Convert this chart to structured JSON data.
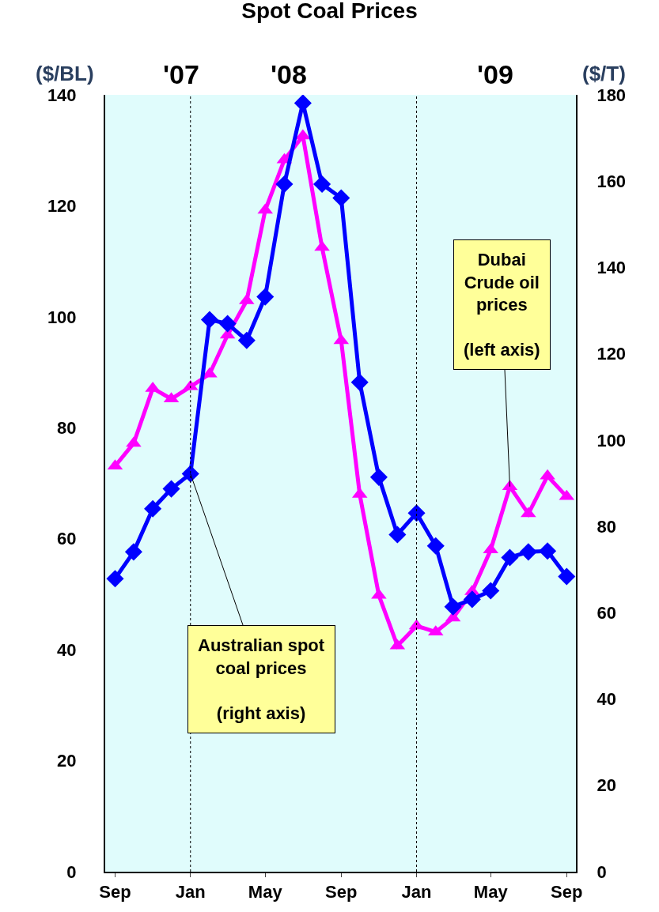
{
  "chart_data": {
    "type": "line",
    "title": "Spot Coal Prices",
    "ylabel": "($/BL)",
    "y2label": "($/T)",
    "x": [
      "2007-09",
      "2007-10",
      "2007-11",
      "2007-12",
      "2008-01",
      "2008-02",
      "2008-03",
      "2008-04",
      "2008-05",
      "2008-06",
      "2008-07",
      "2008-08",
      "2008-09",
      "2008-10",
      "2008-11",
      "2008-12",
      "2009-01",
      "2009-02",
      "2009-03",
      "2009-04",
      "2009-05",
      "2009-06",
      "2009-07",
      "2009-08",
      "2009-09"
    ],
    "series": [
      {
        "color": "#ff00ff",
        "marker": "triangle",
        "axis": "y",
        "values": [
          73.1,
          77.2,
          87.1,
          85.2,
          87.4,
          89.7,
          96.7,
          102.9,
          119.2,
          128.3,
          132.6,
          112.5,
          95.7,
          68.0,
          49.8,
          40.7,
          44.3,
          43.2,
          45.7,
          50.5,
          58.0,
          69.4,
          64.5,
          71.3,
          67.6
        ]
      },
      {
        "color": "#0000ff",
        "marker": "diamond",
        "axis": "y2",
        "values": [
          67.9,
          74.1,
          84.1,
          88.7,
          92.2,
          127.9,
          127.0,
          123.1,
          133.2,
          159.3,
          178.1,
          159.3,
          156.1,
          113.4,
          91.4,
          78.1,
          83.1,
          75.5,
          61.4,
          63.1,
          65.1,
          72.8,
          74.1,
          74.3,
          68.4
        ]
      }
    ],
    "xlim": [
      "2007-08-16",
      "2009-09-16"
    ],
    "xticks": [
      {
        "value": "2007-09",
        "label": "Sep"
      },
      {
        "value": "2008-01",
        "label": "Jan"
      },
      {
        "value": "2008-05",
        "label": "May"
      },
      {
        "value": "2008-09",
        "label": "Sep"
      },
      {
        "value": "2009-01",
        "label": "Jan"
      },
      {
        "value": "2009-05",
        "label": "May"
      },
      {
        "value": "2009-09",
        "label": "Sep"
      }
    ],
    "ylim": [
      0,
      140
    ],
    "yticks": [
      0,
      20,
      40,
      60,
      80,
      100,
      120,
      140
    ],
    "y2lim": [
      0,
      180
    ],
    "y2ticks": [
      0,
      20,
      40,
      60,
      80,
      100,
      120,
      140,
      160,
      180
    ],
    "ref_lines": [
      {
        "axis": "x",
        "value": "2008-01",
        "line_style": "dotted",
        "color": "#000000"
      },
      {
        "axis": "x",
        "value": "2009-01",
        "line_style": "dotted",
        "color": "#000000"
      }
    ],
    "bands": [
      {
        "axis": "x",
        "from": "2007-08-16",
        "to": "2009-09-16",
        "color": "#e0fcfc"
      }
    ],
    "annotations": [
      "'07",
      "'08",
      "'09",
      "Dubai\nCrude oil\nprices\n\n(left axis)",
      "Australian spot\ncoal prices\n\n(right axis)"
    ],
    "grid": false,
    "legend": false
  }
}
